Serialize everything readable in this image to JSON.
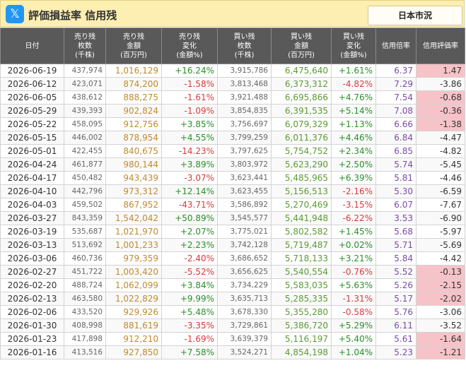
{
  "header": {
    "icon": "x-logo-icon",
    "title": "評価損益率 信用残",
    "market_button": "日本市況"
  },
  "columns": [
    {
      "lines": [
        "日付"
      ]
    },
    {
      "lines": [
        "売り残",
        "枚数",
        "(千株)"
      ]
    },
    {
      "lines": [
        "売り残",
        "金額",
        "(百万円)"
      ]
    },
    {
      "lines": [
        "売り残",
        "変化",
        "(金額%)"
      ]
    },
    {
      "lines": [
        "買い残",
        "枚数",
        "(千株)"
      ]
    },
    {
      "lines": [
        "買い残",
        "金額",
        "(百万円)"
      ]
    },
    {
      "lines": [
        "買い残",
        "変化",
        "(金額%)"
      ]
    },
    {
      "lines": [
        "信用倍率"
      ]
    },
    {
      "lines": [
        "信用評価率"
      ]
    }
  ],
  "rows": [
    {
      "date": "2026-06-19",
      "sell_qty": "437,974",
      "sell_amt": "1,016,129",
      "sell_chg": "+16.24%",
      "buy_qty": "3,915,786",
      "buy_amt": "6,475,640",
      "buy_chg": "+1.61%",
      "ratio": "6.37",
      "eval": "1.47",
      "eval_hl": true
    },
    {
      "date": "2026-06-12",
      "sell_qty": "423,071",
      "sell_amt": "874,200",
      "sell_chg": "-1.58%",
      "buy_qty": "3,813,468",
      "buy_amt": "6,373,312",
      "buy_chg": "-4.82%",
      "ratio": "7.29",
      "eval": "-3.86",
      "eval_hl": false
    },
    {
      "date": "2026-06-05",
      "sell_qty": "438,612",
      "sell_amt": "888,275",
      "sell_chg": "-1.61%",
      "buy_qty": "3,921,488",
      "buy_amt": "6,695,866",
      "buy_chg": "+4.76%",
      "ratio": "7.54",
      "eval": "-0.68",
      "eval_hl": true
    },
    {
      "date": "2026-05-29",
      "sell_qty": "439,393",
      "sell_amt": "902,824",
      "sell_chg": "-1.09%",
      "buy_qty": "3,854,835",
      "buy_amt": "6,391,535",
      "buy_chg": "+5.14%",
      "ratio": "7.08",
      "eval": "-0.36",
      "eval_hl": true
    },
    {
      "date": "2026-05-22",
      "sell_qty": "458,095",
      "sell_amt": "912,756",
      "sell_chg": "+3.85%",
      "buy_qty": "3,756,697",
      "buy_amt": "6,079,329",
      "buy_chg": "+1.13%",
      "ratio": "6.66",
      "eval": "-1.38",
      "eval_hl": true
    },
    {
      "date": "2026-05-15",
      "sell_qty": "446,002",
      "sell_amt": "878,954",
      "sell_chg": "+4.55%",
      "buy_qty": "3,799,259",
      "buy_amt": "6,011,376",
      "buy_chg": "+4.46%",
      "ratio": "6.84",
      "eval": "-4.47",
      "eval_hl": false
    },
    {
      "date": "2026-05-01",
      "sell_qty": "422,455",
      "sell_amt": "840,675",
      "sell_chg": "-14.23%",
      "buy_qty": "3,797,625",
      "buy_amt": "5,754,752",
      "buy_chg": "+2.34%",
      "ratio": "6.85",
      "eval": "-4.82",
      "eval_hl": false
    },
    {
      "date": "2026-04-24",
      "sell_qty": "461,877",
      "sell_amt": "980,144",
      "sell_chg": "+3.89%",
      "buy_qty": "3,803,972",
      "buy_amt": "5,623,290",
      "buy_chg": "+2.50%",
      "ratio": "5.74",
      "eval": "-5.45",
      "eval_hl": false
    },
    {
      "date": "2026-04-17",
      "sell_qty": "450,482",
      "sell_amt": "943,439",
      "sell_chg": "-3.07%",
      "buy_qty": "3,623,441",
      "buy_amt": "5,485,965",
      "buy_chg": "+6.39%",
      "ratio": "5.81",
      "eval": "-4.46",
      "eval_hl": false
    },
    {
      "date": "2026-04-10",
      "sell_qty": "442,796",
      "sell_amt": "973,312",
      "sell_chg": "+12.14%",
      "buy_qty": "3,623,455",
      "buy_amt": "5,156,513",
      "buy_chg": "-2.16%",
      "ratio": "5.30",
      "eval": "-6.59",
      "eval_hl": false
    },
    {
      "date": "2026-04-03",
      "sell_qty": "459,502",
      "sell_amt": "867,952",
      "sell_chg": "-43.71%",
      "buy_qty": "3,586,892",
      "buy_amt": "5,270,469",
      "buy_chg": "-3.15%",
      "ratio": "6.07",
      "eval": "-7.67",
      "eval_hl": false
    },
    {
      "date": "2026-03-27",
      "sell_qty": "843,359",
      "sell_amt": "1,542,042",
      "sell_chg": "+50.89%",
      "buy_qty": "3,545,577",
      "buy_amt": "5,441,948",
      "buy_chg": "-6.22%",
      "ratio": "3.53",
      "eval": "-6.90",
      "eval_hl": false
    },
    {
      "date": "2026-03-19",
      "sell_qty": "535,687",
      "sell_amt": "1,021,970",
      "sell_chg": "+2.07%",
      "buy_qty": "3,775,021",
      "buy_amt": "5,802,582",
      "buy_chg": "+1.45%",
      "ratio": "5.68",
      "eval": "-5.97",
      "eval_hl": false
    },
    {
      "date": "2026-03-13",
      "sell_qty": "513,692",
      "sell_amt": "1,001,233",
      "sell_chg": "+2.23%",
      "buy_qty": "3,742,128",
      "buy_amt": "5,719,487",
      "buy_chg": "+0.02%",
      "ratio": "5.71",
      "eval": "-5.69",
      "eval_hl": false
    },
    {
      "date": "2026-03-06",
      "sell_qty": "460,736",
      "sell_amt": "979,359",
      "sell_chg": "-2.40%",
      "buy_qty": "3,686,652",
      "buy_amt": "5,718,133",
      "buy_chg": "+3.21%",
      "ratio": "5.84",
      "eval": "-4.42",
      "eval_hl": false
    },
    {
      "date": "2026-02-27",
      "sell_qty": "451,722",
      "sell_amt": "1,003,420",
      "sell_chg": "-5.52%",
      "buy_qty": "3,656,625",
      "buy_amt": "5,540,554",
      "buy_chg": "-0.76%",
      "ratio": "5.52",
      "eval": "-0.13",
      "eval_hl": true
    },
    {
      "date": "2026-02-20",
      "sell_qty": "488,724",
      "sell_amt": "1,062,099",
      "sell_chg": "+3.84%",
      "buy_qty": "3,734,229",
      "buy_amt": "5,583,035",
      "buy_chg": "+5.63%",
      "ratio": "5.26",
      "eval": "-2.15",
      "eval_hl": true
    },
    {
      "date": "2026-02-13",
      "sell_qty": "463,580",
      "sell_amt": "1,022,829",
      "sell_chg": "+9.99%",
      "buy_qty": "3,635,713",
      "buy_amt": "5,285,335",
      "buy_chg": "-1.31%",
      "ratio": "5.17",
      "eval": "-2.02",
      "eval_hl": true
    },
    {
      "date": "2026-02-06",
      "sell_qty": "433,520",
      "sell_amt": "929,926",
      "sell_chg": "+5.48%",
      "buy_qty": "3,678,330",
      "buy_amt": "5,355,280",
      "buy_chg": "-0.58%",
      "ratio": "5.76",
      "eval": "-3.06",
      "eval_hl": false
    },
    {
      "date": "2026-01-30",
      "sell_qty": "408,998",
      "sell_amt": "881,619",
      "sell_chg": "-3.35%",
      "buy_qty": "3,729,861",
      "buy_amt": "5,386,720",
      "buy_chg": "+5.29%",
      "ratio": "6.11",
      "eval": "-3.52",
      "eval_hl": false
    },
    {
      "date": "2026-01-23",
      "sell_qty": "417,898",
      "sell_amt": "912,210",
      "sell_chg": "-1.69%",
      "buy_qty": "3,639,379",
      "buy_amt": "5,116,197",
      "buy_chg": "+5.40%",
      "ratio": "5.61",
      "eval": "-1.64",
      "eval_hl": true
    },
    {
      "date": "2026-01-16",
      "sell_qty": "413,516",
      "sell_amt": "927,850",
      "sell_chg": "+7.58%",
      "buy_qty": "3,524,271",
      "buy_amt": "4,854,198",
      "buy_chg": "+1.04%",
      "ratio": "5.23",
      "eval": "-1.21",
      "eval_hl": true
    }
  ]
}
